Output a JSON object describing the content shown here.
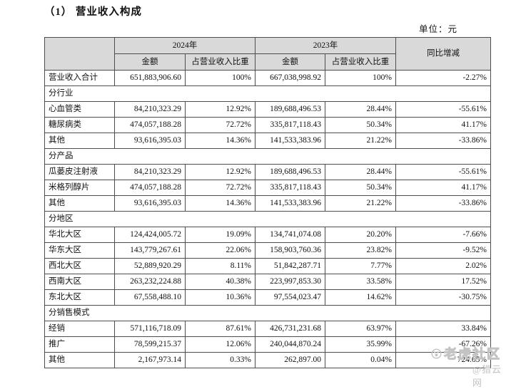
{
  "document": {
    "title": "（1） 营业收入构成",
    "unit_label": "单位：元"
  },
  "colors": {
    "header_bg": "#d9d9d9",
    "border": "#4d4d4d",
    "watermark": "#c3c3c3"
  },
  "table": {
    "columns": {
      "year_2024": "2024年",
      "year_2023": "2023年",
      "yoy": "同比增减",
      "amount": "金额",
      "ratio": "占营业收入比重"
    },
    "total_row": {
      "label": "营业收入合计",
      "amount_2024": "651,883,906.60",
      "ratio_2024": "100%",
      "amount_2023": "667,038,998.92",
      "ratio_2023": "100%",
      "yoy": "-2.27%"
    },
    "sections": [
      {
        "title": "分行业",
        "rows": [
          {
            "label": "心血管类",
            "amount_2024": "84,210,323.29",
            "ratio_2024": "12.92%",
            "amount_2023": "189,688,496.53",
            "ratio_2023": "28.44%",
            "yoy": "-55.61%"
          },
          {
            "label": "糖尿病类",
            "amount_2024": "474,057,188.28",
            "ratio_2024": "72.72%",
            "amount_2023": "335,817,118.43",
            "ratio_2023": "50.34%",
            "yoy": "41.17%"
          },
          {
            "label": "其他",
            "amount_2024": "93,616,395.03",
            "ratio_2024": "14.36%",
            "amount_2023": "141,533,383.96",
            "ratio_2023": "21.22%",
            "yoy": "-33.86%"
          }
        ]
      },
      {
        "title": "分产品",
        "rows": [
          {
            "label": "瓜蒌皮注射液",
            "amount_2024": "84,210,323.29",
            "ratio_2024": "12.92%",
            "amount_2023": "189,688,496.53",
            "ratio_2023": "28.44%",
            "yoy": "-55.61%"
          },
          {
            "label": "米格列醇片",
            "amount_2024": "474,057,188.28",
            "ratio_2024": "72.72%",
            "amount_2023": "335,817,118.43",
            "ratio_2023": "50.34%",
            "yoy": "41.17%"
          },
          {
            "label": "其他",
            "amount_2024": "93,616,395.03",
            "ratio_2024": "14.36%",
            "amount_2023": "141,533,383.96",
            "ratio_2023": "21.22%",
            "yoy": "-33.86%"
          }
        ]
      },
      {
        "title": "分地区",
        "rows": [
          {
            "label": "华北大区",
            "amount_2024": "124,424,005.72",
            "ratio_2024": "19.09%",
            "amount_2023": "134,741,074.08",
            "ratio_2023": "20.20%",
            "yoy": "-7.66%"
          },
          {
            "label": "华东大区",
            "amount_2024": "143,779,267.61",
            "ratio_2024": "22.06%",
            "amount_2023": "158,903,760.36",
            "ratio_2023": "23.82%",
            "yoy": "-9.52%"
          },
          {
            "label": "西北大区",
            "amount_2024": "52,889,920.29",
            "ratio_2024": "8.11%",
            "amount_2023": "51,842,287.71",
            "ratio_2023": "7.77%",
            "yoy": "2.02%"
          },
          {
            "label": "西南大区",
            "amount_2024": "263,232,224.88",
            "ratio_2024": "40.38%",
            "amount_2023": "223,997,853.30",
            "ratio_2023": "33.58%",
            "yoy": "17.52%"
          },
          {
            "label": "东北大区",
            "amount_2024": "67,558,488.10",
            "ratio_2024": "10.36%",
            "amount_2023": "97,554,023.47",
            "ratio_2023": "14.62%",
            "yoy": "-30.75%"
          }
        ]
      },
      {
        "title": "分销售模式",
        "rows": [
          {
            "label": "经销",
            "amount_2024": "571,116,718.09",
            "ratio_2024": "87.61%",
            "amount_2023": "426,731,231.68",
            "ratio_2023": "63.97%",
            "yoy": "33.84%"
          },
          {
            "label": "推广",
            "amount_2024": "78,599,215.37",
            "ratio_2024": "12.06%",
            "amount_2023": "240,044,870.24",
            "ratio_2023": "35.99%",
            "yoy": "-67.26%"
          },
          {
            "label": "其他",
            "amount_2024": "2,167,973.14",
            "ratio_2024": "0.33%",
            "amount_2023": "262,897.00",
            "ratio_2023": "0.04%",
            "yoy": "724.65%"
          }
        ]
      }
    ]
  },
  "watermark": {
    "community": "老虎社区",
    "credit": "@猎云网",
    "icon": "paw-badge-icon"
  }
}
